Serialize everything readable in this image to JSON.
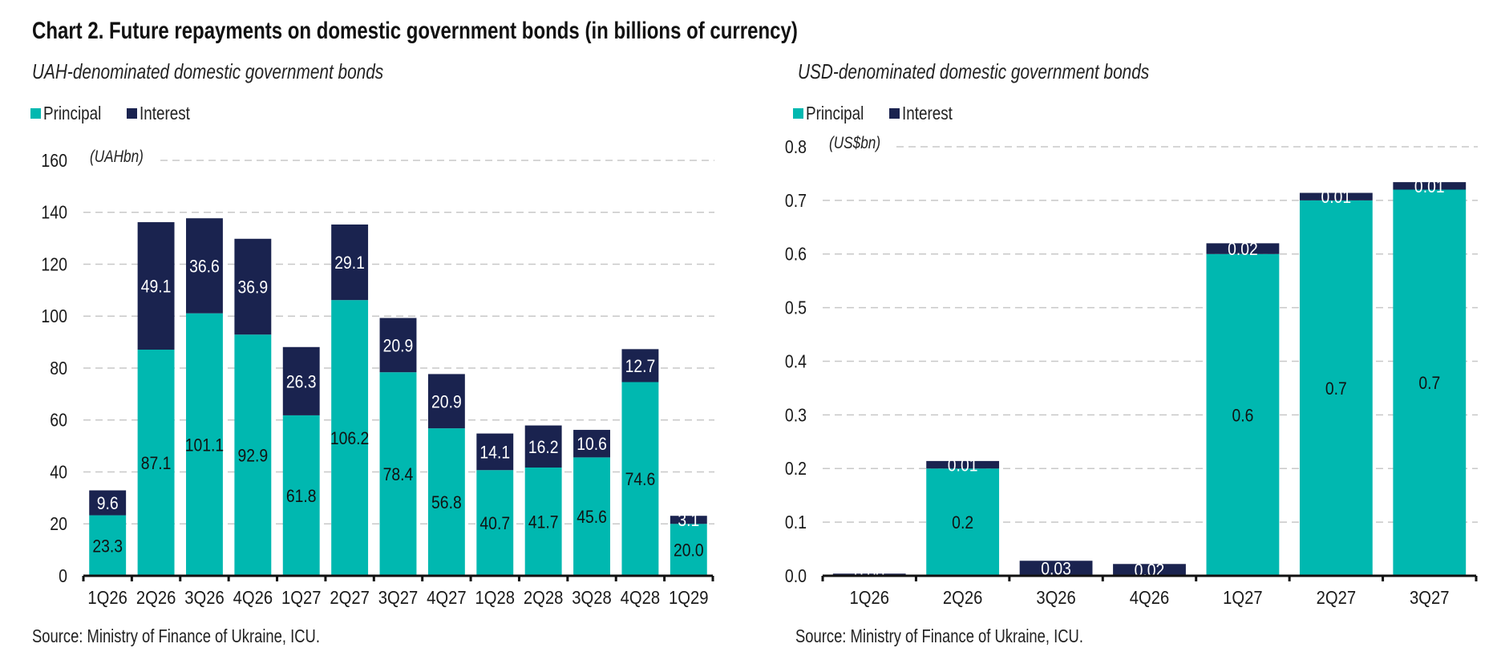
{
  "title": "Chart 2. Future repayments on domestic government bonds (in billions of currency)",
  "colors": {
    "principal": "#00B8B0",
    "interest": "#1A234F",
    "grid": "#C8C8C8",
    "axis": "#111111"
  },
  "left": {
    "subtitle": "UAH-denominated domestic government bonds",
    "legend": [
      "Principal",
      "Interest"
    ],
    "source": "Source: Ministry of Finance of Ukraine, ICU."
  },
  "right": {
    "subtitle": "USD-denominated domestic government bonds",
    "legend": [
      "Principal",
      "Interest"
    ],
    "source": "Source: Ministry of Finance of Ukraine, ICU."
  },
  "chart_data": [
    {
      "type": "bar",
      "stacked": true,
      "title": "UAH-denominated domestic government bonds",
      "unit_label": "(UAHbn)",
      "xlabel": "",
      "ylabel": "",
      "ylim": [
        0,
        160
      ],
      "yticks": [
        0,
        20,
        40,
        60,
        80,
        100,
        120,
        140,
        160
      ],
      "ytick_labels": [
        "0",
        "20",
        "40",
        "60",
        "80",
        "100",
        "120",
        "140",
        "160"
      ],
      "grid": true,
      "legend_position": "top-left",
      "categories": [
        "1Q26",
        "2Q26",
        "3Q26",
        "4Q26",
        "1Q27",
        "2Q27",
        "3Q27",
        "4Q27",
        "1Q28",
        "2Q28",
        "3Q28",
        "4Q28",
        "1Q29"
      ],
      "series": [
        {
          "name": "Principal",
          "values": [
            23.3,
            87.1,
            101.1,
            92.9,
            61.8,
            106.2,
            78.4,
            56.8,
            40.7,
            41.7,
            45.6,
            74.6,
            20.0
          ],
          "labels": [
            "23.3",
            "87.1",
            "101.1",
            "92.9",
            "61.8",
            "106.2",
            "78.4",
            "56.8",
            "40.7",
            "41.7",
            "45.6",
            "74.6",
            "20.0"
          ]
        },
        {
          "name": "Interest",
          "values": [
            9.6,
            49.1,
            36.6,
            36.9,
            26.3,
            29.1,
            20.9,
            20.9,
            14.1,
            16.2,
            10.6,
            12.7,
            3.1
          ],
          "labels": [
            "9.6",
            "49.1",
            "36.6",
            "36.9",
            "26.3",
            "29.1",
            "20.9",
            "20.9",
            "14.1",
            "16.2",
            "10.6",
            "12.7",
            "3.1"
          ]
        }
      ]
    },
    {
      "type": "bar",
      "stacked": true,
      "title": "USD-denominated domestic government bonds",
      "unit_label": "(US$bn)",
      "xlabel": "",
      "ylabel": "",
      "ylim": [
        0,
        0.8
      ],
      "yticks": [
        0,
        0.1,
        0.2,
        0.3,
        0.4,
        0.5,
        0.6,
        0.7,
        0.8
      ],
      "ytick_labels": [
        "0.0",
        "0.1",
        "0.2",
        "0.3",
        "0.4",
        "0.5",
        "0.6",
        "0.7",
        "0.8"
      ],
      "grid": true,
      "legend_position": "top-left",
      "categories": [
        "1Q26",
        "2Q26",
        "3Q26",
        "4Q26",
        "1Q27",
        "2Q27",
        "3Q27"
      ],
      "series": [
        {
          "name": "Principal",
          "values": [
            0,
            0.2,
            0,
            0,
            0.6,
            0.7,
            0.72
          ],
          "labels": [
            "",
            "0.2",
            "",
            "",
            "0.6",
            "0.7",
            "0.7"
          ]
        },
        {
          "name": "Interest",
          "values": [
            0.004,
            0.014,
            0.028,
            0.022,
            0.02,
            0.014,
            0.014
          ],
          "labels": [
            "0.00",
            "0.01",
            "0.03",
            "0.02",
            "0.02",
            "0.01",
            "0.01"
          ]
        }
      ]
    }
  ]
}
